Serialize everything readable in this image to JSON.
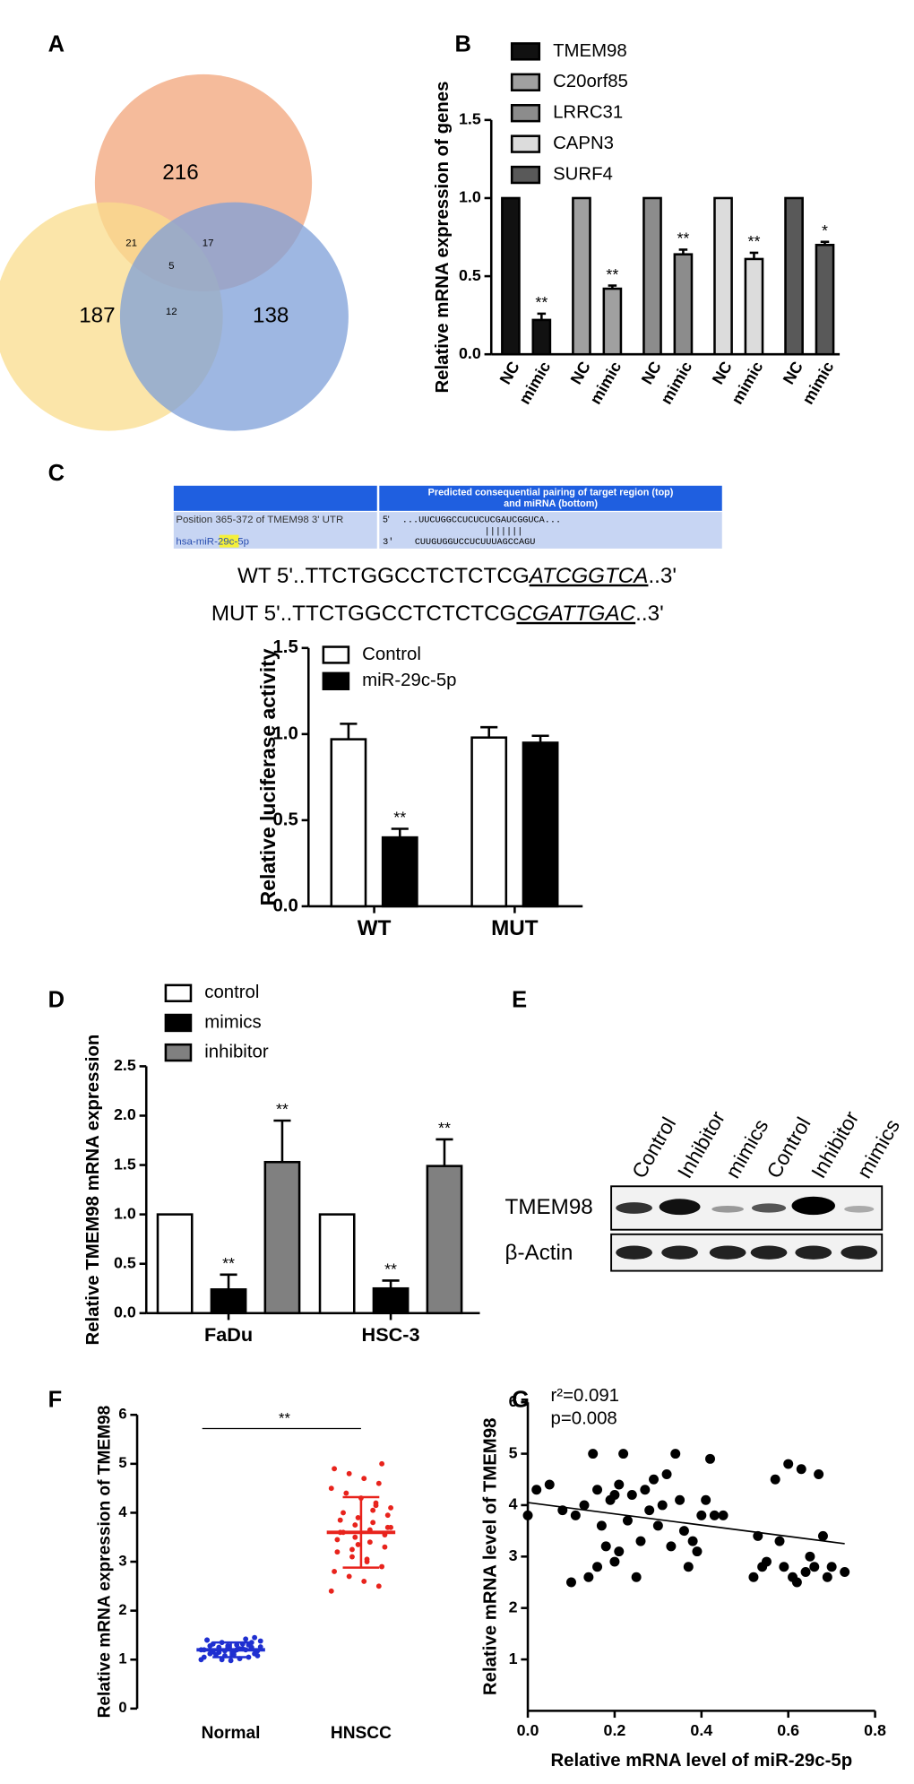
{
  "panel_labels": [
    "A",
    "B",
    "C",
    "D",
    "E",
    "F",
    "G"
  ],
  "target_site": {
    "header": "Predicted consequential pairing of target region (top) and miRNA (bottom)",
    "header_lines": [
      "Predicted consequential pairing of target region (top)",
      "and miRNA (bottom)"
    ],
    "rows": [
      {
        "label": "Position 365-372 of TMEM98 3' UTR",
        "end": "5'",
        "sequence": "...UUCUGGCCUCUCUCGAUCGGUCA..."
      },
      {
        "label_parts": [
          "hsa-miR-",
          "29c",
          "-5p"
        ],
        "end": "3'",
        "sequence": "CUUGUGGUCCUCUUUAGCCAGU"
      }
    ],
    "pairing": "|||||||",
    "wt": [
      "WT 5'..TTCTGGCCTCTCTCG",
      "ATCGGTCA",
      "..3'"
    ],
    "mut": [
      "MUT 5'..TTCTGGCCTCTCTCG",
      "CGATTGAC",
      "..3'"
    ]
  },
  "western_blot": {
    "lanes": [
      "Control",
      "Inhibitor",
      "mimics",
      "Control",
      "Inhibitor",
      "mimics"
    ],
    "rows": [
      "TMEM98",
      "β-Actin"
    ]
  },
  "chart_data": [
    {
      "type": "venn",
      "values": [
        216,
        187,
        138,
        21,
        17,
        12,
        5
      ],
      "colors": [
        "#f2a479",
        "#f9dc8c",
        "#7e9fd8"
      ]
    },
    {
      "type": "bar",
      "ylabel": "Relative mRNA expression of genes",
      "categories": [
        "NC",
        "mimic"
      ],
      "ylim": [
        0,
        1.5
      ],
      "yticks": [
        {
          "value": 0,
          "label": "0.0"
        },
        0.5,
        {
          "value": 1,
          "label": "1.0"
        },
        1.5
      ],
      "series": [
        {
          "name": "TMEM98",
          "color": "#111111",
          "values": [
            1,
            0.22
          ],
          "errors": [
            null,
            0.04
          ],
          "annotations": [
            null,
            "**"
          ]
        },
        {
          "name": "C20orf85",
          "color": "#a0a0a0",
          "values": [
            1,
            0.42
          ],
          "errors": [
            null,
            0.02
          ],
          "annotations": [
            null,
            "**"
          ]
        },
        {
          "name": "LRRC31",
          "color": "#8c8c8c",
          "values": [
            1,
            0.64
          ],
          "errors": [
            null,
            0.03
          ],
          "annotations": [
            null,
            "**"
          ]
        },
        {
          "name": "CAPN3",
          "color": "#dcdcdc",
          "values": [
            1,
            0.61
          ],
          "errors": [
            null,
            0.04
          ],
          "annotations": [
            null,
            "**"
          ]
        },
        {
          "name": "SURF4",
          "color": "#595959",
          "values": [
            1,
            0.7
          ],
          "errors": [
            null,
            0.02
          ],
          "annotations": [
            null,
            "*"
          ]
        }
      ]
    },
    {
      "type": "bar",
      "ylabel": "Relative luciferase activity",
      "categories": [
        "WT",
        "MUT"
      ],
      "ylim": [
        0,
        1.5
      ],
      "yticks": [
        {
          "value": 0,
          "label": "0.0"
        },
        0.5,
        {
          "value": 1,
          "label": "1.0"
        },
        1.5
      ],
      "series": [
        {
          "name": "Control",
          "color": "#ffffff",
          "values": [
            0.97,
            0.98
          ],
          "errors": [
            0.09,
            0.06
          ]
        },
        {
          "name": "miR-29c-5p",
          "color": "#000000",
          "values": [
            0.4,
            0.95
          ],
          "errors": [
            0.05,
            0.04
          ],
          "annotations": [
            "**",
            null
          ]
        }
      ]
    },
    {
      "type": "bar",
      "ylabel": "Relative TMEM98 mRNA expression",
      "categories": [
        "FaDu",
        "HSC-3"
      ],
      "ylim": [
        0,
        2.5
      ],
      "yticks": [
        {
          "value": 0,
          "label": "0.0"
        },
        0.5,
        {
          "value": 1,
          "label": "1.0"
        },
        1.5,
        {
          "value": 2,
          "label": "2.0"
        },
        2.5
      ],
      "series": [
        {
          "name": "control",
          "color": "#ffffff",
          "values": [
            1,
            1
          ]
        },
        {
          "name": "mimics",
          "color": "#000000",
          "values": [
            0.24,
            0.25
          ],
          "errors": [
            0.15,
            0.08
          ],
          "annotations": [
            "**",
            "**"
          ]
        },
        {
          "name": "inhibitor",
          "color": "#808080",
          "values": [
            1.53,
            1.49
          ],
          "errors": [
            0.42,
            0.27
          ],
          "annotations": [
            "**",
            "**"
          ]
        }
      ]
    },
    {
      "type": "strip",
      "ylabel": "Relative mRNA expression of TMEM98",
      "significance": "**",
      "ylim": [
        0,
        6
      ],
      "yticks": [
        0,
        1,
        2,
        3,
        4,
        5,
        6
      ],
      "series": [
        {
          "name": "Normal",
          "color": "#1f2fd0",
          "mean": 1.2,
          "sd": 0.15,
          "values": [
            1.0,
            1.05,
            1.1,
            1.15,
            1.2,
            1.25,
            1.3,
            1.35,
            1.4,
            1.45,
            1.02,
            1.08,
            1.12,
            1.18,
            1.22,
            1.28,
            1.32,
            1.38,
            1.42,
            0.98,
            1.1,
            1.2,
            1.3,
            1.15,
            1.25,
            1.05,
            1.35,
            1.2,
            1.0,
            1.4,
            1.12,
            1.22,
            1.18,
            1.28,
            1.08,
            1.32,
            1.24,
            1.16,
            1.26,
            1.2
          ]
        },
        {
          "name": "HNSCC",
          "color": "#e8231c",
          "mean": 3.6,
          "sd": 0.72,
          "values": [
            2.4,
            2.5,
            2.6,
            2.7,
            2.8,
            2.9,
            3.0,
            3.1,
            3.2,
            3.3,
            3.4,
            3.5,
            3.6,
            3.7,
            3.8,
            3.9,
            4.0,
            4.1,
            4.2,
            4.3,
            4.4,
            4.5,
            4.6,
            4.7,
            4.8,
            4.9,
            5.0,
            3.05,
            3.25,
            3.45,
            3.55,
            3.65,
            3.75,
            3.85,
            3.95,
            4.05,
            3.35,
            3.6,
            3.7,
            4.15
          ]
        }
      ]
    },
    {
      "type": "scatter",
      "xlabel": "Relative mRNA level of miR-29c-5p",
      "ylabel": "Relative mRNA level of TMEM98",
      "annotations": [
        "r²=0.091",
        "p=0.008"
      ],
      "color": "#000000",
      "xlim": [
        0,
        0.8
      ],
      "xticks": [
        {
          "value": 0,
          "label": "0.0"
        },
        0.2,
        0.4,
        0.6,
        0.8
      ],
      "ylim": [
        0,
        6
      ],
      "yticks": [
        1,
        2,
        3,
        4,
        5,
        6
      ],
      "fit": {
        "x": [
          0,
          0.73
        ],
        "y": [
          4.05,
          3.25
        ]
      },
      "x": [
        0.0,
        0.02,
        0.05,
        0.08,
        0.1,
        0.11,
        0.13,
        0.14,
        0.15,
        0.16,
        0.16,
        0.17,
        0.18,
        0.19,
        0.2,
        0.2,
        0.21,
        0.21,
        0.22,
        0.23,
        0.24,
        0.25,
        0.26,
        0.27,
        0.28,
        0.29,
        0.3,
        0.31,
        0.32,
        0.33,
        0.34,
        0.35,
        0.36,
        0.37,
        0.38,
        0.39,
        0.4,
        0.41,
        0.42,
        0.43,
        0.45,
        0.52,
        0.53,
        0.54,
        0.55,
        0.57,
        0.58,
        0.59,
        0.6,
        0.61,
        0.62,
        0.63,
        0.64,
        0.65,
        0.66,
        0.67,
        0.68,
        0.69,
        0.7,
        0.73
      ],
      "y": [
        3.8,
        4.3,
        4.4,
        3.9,
        2.5,
        3.8,
        4.0,
        2.6,
        5.0,
        4.3,
        2.8,
        3.6,
        3.2,
        4.1,
        4.2,
        2.9,
        3.1,
        4.4,
        5.0,
        3.7,
        4.2,
        2.6,
        3.3,
        4.3,
        3.9,
        4.5,
        3.6,
        4.0,
        4.6,
        3.2,
        5.0,
        4.1,
        3.5,
        2.8,
        3.3,
        3.1,
        3.8,
        4.1,
        4.9,
        3.8,
        3.8,
        2.6,
        3.4,
        2.8,
        2.9,
        4.5,
        3.3,
        2.8,
        4.8,
        2.6,
        2.5,
        4.7,
        2.7,
        3.0,
        2.8,
        4.6,
        3.4,
        2.6,
        2.8,
        2.7
      ]
    }
  ]
}
